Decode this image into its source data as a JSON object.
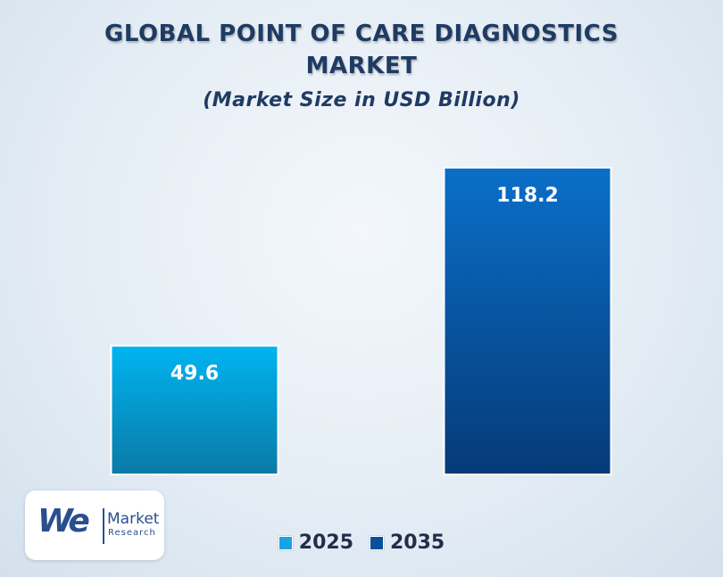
{
  "header": {
    "title_line1": "GLOBAL POINT OF CARE DIAGNOSTICS",
    "title_line2": "MARKET",
    "subtitle": "(Market Size in USD Billion)"
  },
  "chart_data": {
    "type": "bar",
    "title": "GLOBAL POINT OF CARE DIAGNOSTICS MARKET",
    "subtitle": "(Market Size in USD Billion)",
    "categories": [
      "2025",
      "2035"
    ],
    "values": [
      49.6,
      118.2
    ],
    "data_labels": [
      "49.6",
      "118.2"
    ],
    "ylim": [
      0,
      118.2
    ],
    "grid": false,
    "legend_position": "bottom-center",
    "colors": [
      {
        "top": "#00b4f0",
        "bottom": "#0a7aa6",
        "swatch": "#1aa3e0"
      },
      {
        "top": "#0a6fc8",
        "bottom": "#063a78",
        "swatch": "#0a4f9a"
      }
    ]
  },
  "legend": {
    "items": [
      {
        "label": "2025",
        "color": "#1aa3e0"
      },
      {
        "label": "2035",
        "color": "#0a4f9a"
      }
    ]
  },
  "logo": {
    "mark": "We",
    "name": "Market",
    "sub": "Research"
  }
}
